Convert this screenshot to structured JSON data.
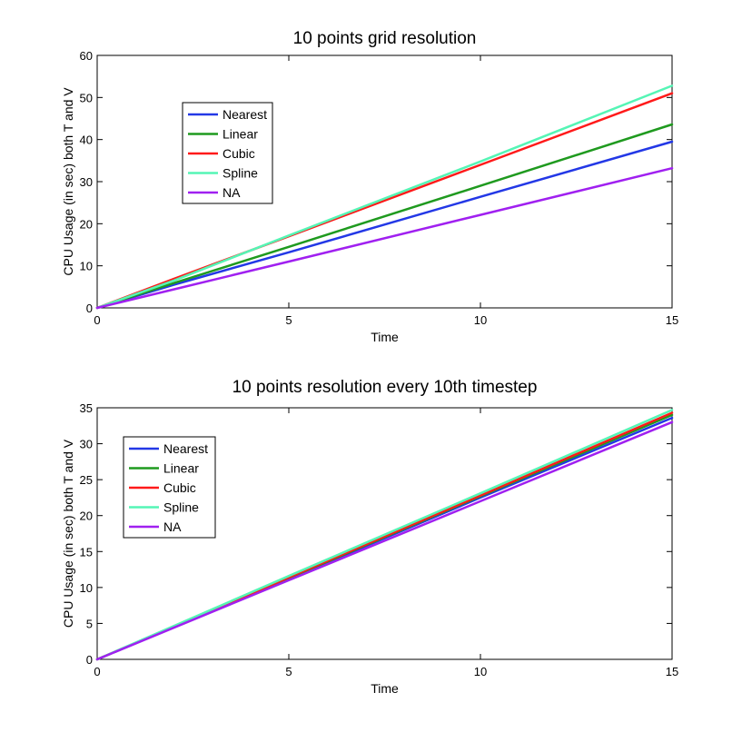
{
  "chart_data": [
    {
      "type": "line",
      "title": "10 points grid resolution",
      "xlabel": "Time",
      "ylabel": "CPU Usage (in sec) both T and V",
      "xlim": [
        0,
        15
      ],
      "ylim": [
        0,
        60
      ],
      "xticks": [
        0,
        5,
        10,
        15
      ],
      "yticks": [
        0,
        10,
        20,
        30,
        40,
        50,
        60
      ],
      "grid": false,
      "legend_position": "upper-left",
      "series": [
        {
          "name": "Nearest",
          "color": "#2338e6",
          "x": [
            0,
            2,
            5,
            10,
            15
          ],
          "y": [
            0,
            5.5,
            13.2,
            26.4,
            39.5
          ]
        },
        {
          "name": "Linear",
          "color": "#1f9a1f",
          "x": [
            0,
            2,
            5,
            10,
            15
          ],
          "y": [
            0,
            5.9,
            14.5,
            29.0,
            43.6
          ]
        },
        {
          "name": "Cubic",
          "color": "#ff1a1a",
          "x": [
            0,
            2,
            5,
            10,
            15
          ],
          "y": [
            0,
            6.9,
            17.0,
            34.0,
            51.0
          ]
        },
        {
          "name": "Spline",
          "color": "#55f5b5",
          "x": [
            0,
            2,
            5,
            10,
            15
          ],
          "y": [
            0,
            6.5,
            17.2,
            34.8,
            52.8
          ]
        },
        {
          "name": "NA",
          "color": "#a020f0",
          "x": [
            0,
            2,
            5,
            10,
            15
          ],
          "y": [
            0,
            4.4,
            11.0,
            22.1,
            33.2
          ]
        }
      ]
    },
    {
      "type": "line",
      "title": "10 points resolution every 10th timestep",
      "xlabel": "Time",
      "ylabel": "CPU Usage (in sec) both T and V",
      "xlim": [
        0,
        15
      ],
      "ylim": [
        0,
        35
      ],
      "xticks": [
        0,
        5,
        10,
        15
      ],
      "yticks": [
        0,
        5,
        10,
        15,
        20,
        25,
        30,
        35
      ],
      "grid": false,
      "legend_position": "upper-left",
      "series": [
        {
          "name": "Nearest",
          "color": "#2338e6",
          "x": [
            0,
            5,
            10,
            15
          ],
          "y": [
            0,
            11.2,
            22.5,
            33.6
          ]
        },
        {
          "name": "Linear",
          "color": "#1f9a1f",
          "x": [
            0,
            5,
            10,
            15
          ],
          "y": [
            0,
            11.3,
            22.7,
            34.0
          ]
        },
        {
          "name": "Cubic",
          "color": "#ff1a1a",
          "x": [
            0,
            5,
            10,
            15
          ],
          "y": [
            0,
            11.4,
            22.8,
            34.3
          ]
        },
        {
          "name": "Spline",
          "color": "#55f5b5",
          "x": [
            0,
            5,
            10,
            15
          ],
          "y": [
            0,
            11.6,
            23.1,
            34.7
          ]
        },
        {
          "name": "NA",
          "color": "#a020f0",
          "x": [
            0,
            5,
            10,
            15
          ],
          "y": [
            0,
            11.0,
            22.0,
            33.0
          ]
        }
      ]
    }
  ]
}
